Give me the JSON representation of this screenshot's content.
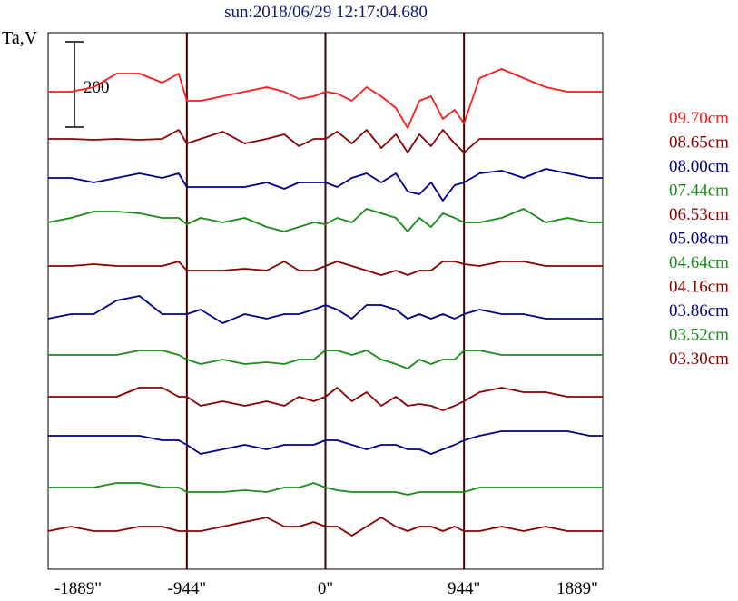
{
  "chart_data": {
    "type": "line",
    "title": "sun:2018/06/29 12:17:04.680",
    "ylabel": "Ta,V",
    "scale_bar_label": "200",
    "x_ticks": [
      {
        "value": -1889,
        "label": "-1889\""
      },
      {
        "value": -944,
        "label": "-944\""
      },
      {
        "value": 0,
        "label": "0\""
      },
      {
        "value": 944,
        "label": "944\""
      },
      {
        "value": 1889,
        "label": "1889\""
      }
    ],
    "xlim": [
      -1889,
      1889
    ],
    "vertical_lines_at": [
      -944,
      0,
      944
    ],
    "x": [
      -1889,
      -1733,
      -1578,
      -1422,
      -1267,
      -1111,
      -1000,
      -944,
      -850,
      -700,
      -550,
      -400,
      -280,
      -180,
      -80,
      0,
      80,
      180,
      280,
      380,
      480,
      560,
      640,
      720,
      800,
      880,
      944,
      1050,
      1200,
      1350,
      1500,
      1650,
      1800,
      1889
    ],
    "series": [
      {
        "name": "09.70cm",
        "color": "#ff1a1a",
        "offset": 0,
        "values": [
          0,
          0,
          5,
          20,
          20,
          10,
          20,
          -10,
          -10,
          -5,
          0,
          5,
          0,
          -8,
          -5,
          0,
          -2,
          -10,
          5,
          -5,
          -18,
          -40,
          -10,
          -5,
          -30,
          -20,
          -35,
          15,
          25,
          15,
          5,
          0,
          0,
          0
        ]
      },
      {
        "name": "08.65cm",
        "color": "#8b0000",
        "offset": -52,
        "values": [
          0,
          0,
          -1,
          0,
          -1,
          0,
          10,
          -5,
          0,
          8,
          -5,
          0,
          5,
          -8,
          0,
          0,
          8,
          -5,
          10,
          -10,
          5,
          -15,
          5,
          -8,
          10,
          -5,
          -15,
          0,
          0,
          0,
          0,
          0,
          0,
          0
        ]
      },
      {
        "name": "08.00cm",
        "color": "#00008b",
        "offset": -95,
        "values": [
          0,
          0,
          -5,
          0,
          5,
          0,
          5,
          -10,
          -10,
          -10,
          -10,
          -5,
          -12,
          -5,
          -5,
          -5,
          -10,
          0,
          5,
          -5,
          5,
          -15,
          -18,
          -5,
          -25,
          -8,
          -5,
          5,
          8,
          0,
          10,
          5,
          0,
          0
        ]
      },
      {
        "name": "07.44cm",
        "color": "#1a8c1a",
        "offset": -144,
        "values": [
          0,
          5,
          12,
          12,
          10,
          5,
          5,
          -2,
          5,
          0,
          5,
          -5,
          -10,
          -5,
          0,
          -2,
          5,
          0,
          15,
          10,
          5,
          -10,
          5,
          -5,
          10,
          5,
          0,
          0,
          5,
          15,
          0,
          5,
          0,
          0
        ]
      },
      {
        "name": "06.53cm",
        "color": "#8b0000",
        "offset": -192,
        "values": [
          0,
          0,
          2,
          0,
          0,
          0,
          5,
          -5,
          -5,
          -5,
          -3,
          -5,
          5,
          -5,
          -5,
          0,
          5,
          0,
          -5,
          -10,
          -5,
          -10,
          -5,
          -5,
          5,
          5,
          2,
          0,
          5,
          5,
          0,
          0,
          0,
          0
        ]
      },
      {
        "name": "05.08cm",
        "color": "#00008b",
        "offset": -240,
        "values": [
          -10,
          -5,
          -5,
          10,
          15,
          -5,
          -5,
          -5,
          0,
          -15,
          -5,
          -10,
          -5,
          -5,
          0,
          5,
          0,
          -10,
          5,
          5,
          0,
          -10,
          -5,
          -10,
          -5,
          -10,
          -5,
          0,
          -5,
          -5,
          -10,
          -10,
          -10,
          -10
        ]
      },
      {
        "name": "04.64cm",
        "color": "#1a8c1a",
        "offset": -290,
        "values": [
          0,
          0,
          0,
          0,
          5,
          5,
          0,
          -5,
          -10,
          -5,
          -10,
          -8,
          -10,
          -5,
          -5,
          5,
          5,
          0,
          5,
          -5,
          -10,
          -15,
          -5,
          -10,
          -5,
          -5,
          5,
          5,
          0,
          0,
          0,
          0,
          0,
          0
        ]
      },
      {
        "name": "04.16cm",
        "color": "#8b0000",
        "offset": -336,
        "values": [
          0,
          0,
          0,
          0,
          10,
          10,
          0,
          0,
          -10,
          -5,
          -10,
          -5,
          -10,
          0,
          -5,
          0,
          10,
          -5,
          5,
          -10,
          0,
          -10,
          -8,
          -10,
          -15,
          -10,
          -5,
          5,
          10,
          5,
          5,
          0,
          0,
          0
        ]
      },
      {
        "name": "03.86cm",
        "color": "#00008b",
        "offset": -379,
        "values": [
          0,
          0,
          0,
          0,
          0,
          -5,
          -5,
          -10,
          -20,
          -15,
          -10,
          -15,
          -10,
          -10,
          -10,
          -5,
          -5,
          -10,
          -15,
          -10,
          -10,
          -15,
          -15,
          -20,
          -15,
          -10,
          -5,
          0,
          5,
          5,
          5,
          5,
          0,
          0
        ]
      },
      {
        "name": "03.52cm",
        "color": "#1a8c1a",
        "offset": -436,
        "values": [
          0,
          0,
          0,
          5,
          5,
          0,
          0,
          -5,
          -5,
          -5,
          -3,
          -5,
          0,
          0,
          5,
          0,
          -3,
          -5,
          -5,
          -5,
          -5,
          -8,
          -5,
          -5,
          -5,
          -5,
          -5,
          0,
          0,
          0,
          0,
          0,
          0,
          0
        ]
      },
      {
        "name": "03.30cm",
        "color": "#8b0000",
        "offset": -484,
        "values": [
          0,
          5,
          0,
          0,
          5,
          5,
          0,
          0,
          0,
          5,
          10,
          15,
          5,
          5,
          10,
          5,
          5,
          -5,
          5,
          15,
          5,
          0,
          5,
          5,
          0,
          5,
          0,
          0,
          5,
          0,
          5,
          0,
          0,
          0
        ]
      }
    ]
  }
}
